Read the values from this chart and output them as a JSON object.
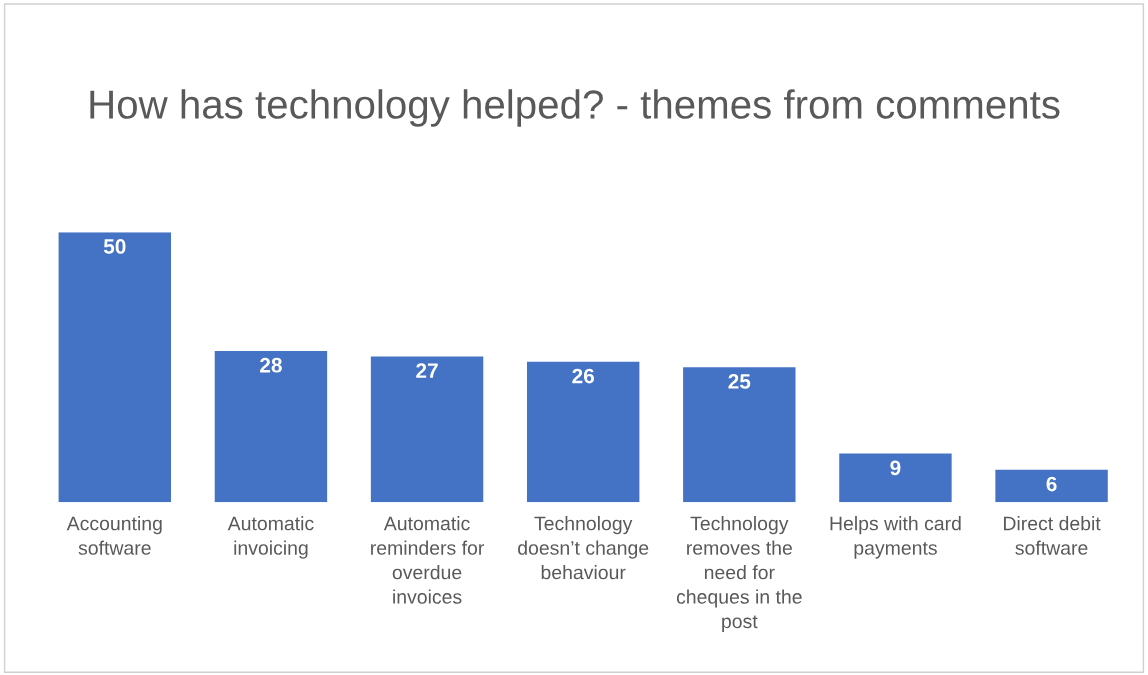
{
  "chart_data": {
    "type": "bar",
    "title": "How has technology helped? - themes from comments",
    "categories": [
      "Accounting software",
      "Automatic invoicing",
      "Automatic reminders for overdue invoices",
      "Technology doesn’t change behaviour",
      "Technology removes the need for cheques in the post",
      "Helps with card payments",
      "Direct debit software"
    ],
    "values": [
      50,
      28,
      27,
      26,
      25,
      9,
      6
    ],
    "color": "#4472c4",
    "data_labels": true,
    "grid": false,
    "legend": false
  }
}
